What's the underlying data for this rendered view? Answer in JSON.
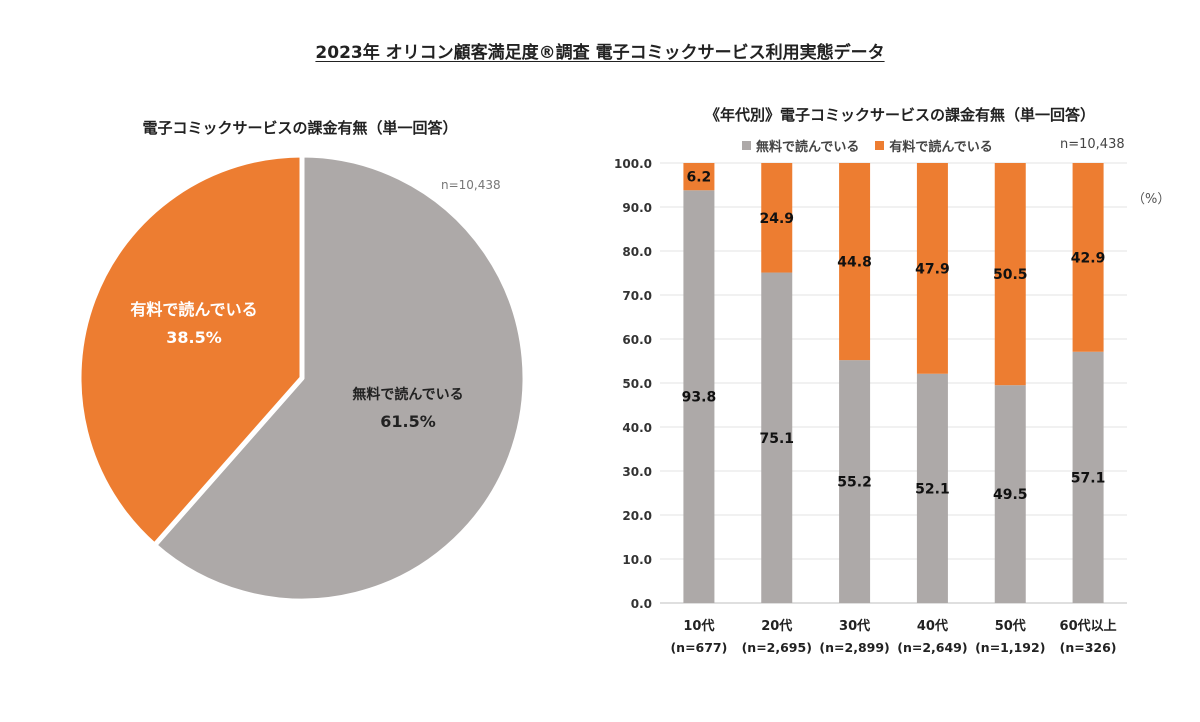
{
  "title": "2023年 オリコン顧客満足度®調査 電子コミックサービス利用実態データ",
  "colors": {
    "free": "#ADA9A8",
    "paid": "#ED7D31"
  },
  "chart_data": [
    {
      "type": "pie",
      "title": "電子コミックサービスの課金有無（単一回答）",
      "n_label": "n=10,438",
      "slices": [
        {
          "label": "無料で読んでいる",
          "value": 61.5,
          "display": "61.5%"
        },
        {
          "label": "有料で読んでいる",
          "value": 38.5,
          "display": "38.5%"
        }
      ]
    },
    {
      "type": "bar",
      "stacked": true,
      "title": "《年代別》電子コミックサービスの課金有無（単一回答）",
      "n_label": "n=10,438",
      "unit": "（%）",
      "categories": [
        "10代",
        "20代",
        "30代",
        "40代",
        "50代",
        "60代以上"
      ],
      "category_n": [
        "(n=677)",
        "(n=2,695)",
        "(n=2,899)",
        "(n=2,649)",
        "(n=1,192)",
        "(n=326)"
      ],
      "series": [
        {
          "name": "無料で読んでいる",
          "values": [
            93.8,
            75.1,
            55.2,
            52.1,
            49.5,
            57.1
          ]
        },
        {
          "name": "有料で読んでいる",
          "values": [
            6.2,
            24.9,
            44.8,
            47.9,
            50.5,
            42.9
          ]
        }
      ],
      "ylim": [
        0,
        100
      ],
      "yticks": [
        "0.0",
        "10.0",
        "20.0",
        "30.0",
        "40.0",
        "50.0",
        "60.0",
        "70.0",
        "80.0",
        "90.0",
        "100.0"
      ]
    }
  ]
}
